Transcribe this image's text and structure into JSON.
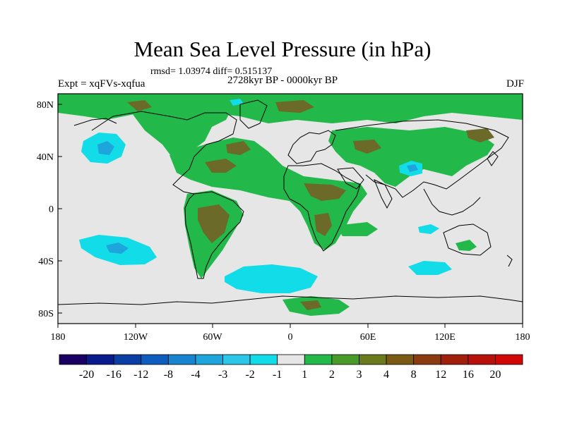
{
  "title": "Mean Sea Level Pressure (in hPa)",
  "stats": "rmsd= 1.03974 diff= 0.515137",
  "period": "2728kyr BP - 0000kyr BP",
  "experiment": "Expt = xqFVs-xqfua",
  "season": "DJF",
  "lat_labels": [
    "80N",
    "40N",
    "0",
    "40S",
    "80S"
  ],
  "lon_labels": [
    "180",
    "120W",
    "60W",
    "0",
    "60E",
    "120E",
    "180"
  ],
  "colorbar": {
    "labels": [
      "-20",
      "-16",
      "-12",
      "-8",
      "-4",
      "-3",
      "-2",
      "-1",
      "1",
      "2",
      "3",
      "4",
      "8",
      "12",
      "16",
      "20"
    ],
    "colors": [
      "#1a0063",
      "#081a8c",
      "#0b3ea5",
      "#0f5cbf",
      "#1884d0",
      "#1ea6dc",
      "#2bc6e8",
      "#12dce8",
      "#e6e6e6",
      "#22b84a",
      "#4a9a2a",
      "#6b7a1c",
      "#7a5a14",
      "#8a3c10",
      "#a0200c",
      "#b8100a",
      "#d00808"
    ]
  },
  "colors": {
    "ocean_background": "#e6e6e6",
    "positive": "#22b84a",
    "strong_positive": "#6b6a28",
    "negative": "#12dce8",
    "strong_negative": "#1ea6dc"
  }
}
